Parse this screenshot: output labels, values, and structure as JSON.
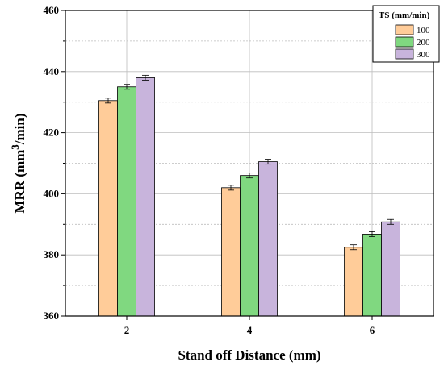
{
  "chart_data": {
    "type": "bar",
    "xlabel": "Stand off Distance (mm)",
    "ylabel": "MRR (mm",
    "ylabel_sup": "3",
    "ylabel_tail": "/min)",
    "categories": [
      "2",
      "4",
      "6"
    ],
    "ylim": [
      360,
      460
    ],
    "yticks": [
      360,
      380,
      400,
      420,
      440,
      460
    ],
    "grid": true,
    "legend": {
      "title": "TS (mm/min)",
      "placement": "top-right"
    },
    "series": [
      {
        "name": "100",
        "color": "#FFCC99",
        "values": [
          430.5,
          402.0,
          382.5
        ],
        "errors": [
          0.8,
          0.8,
          0.8
        ]
      },
      {
        "name": "200",
        "color": "#80D880",
        "values": [
          435.0,
          406.0,
          386.8
        ],
        "errors": [
          0.8,
          0.8,
          0.8
        ]
      },
      {
        "name": "300",
        "color": "#C8B4DC",
        "values": [
          438.0,
          410.5,
          390.8
        ],
        "errors": [
          0.8,
          0.8,
          0.8
        ]
      }
    ]
  }
}
